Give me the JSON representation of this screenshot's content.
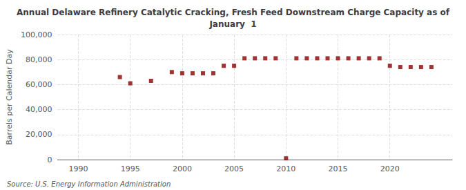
{
  "chart_data": {
    "type": "scatter",
    "title": "Annual Delaware Refinery Catalytic Cracking, Fresh Feed Downstream Charge Capacity as of\nJanuary  1",
    "ylabel": "Barrels per Calendar Day",
    "annotation": "Source: U.S. Energy Information Administration",
    "color": "#8b0000",
    "marker": "square",
    "grid": true,
    "x": [
      1994,
      1995,
      1997,
      1999,
      2000,
      2001,
      2002,
      2003,
      2004,
      2005,
      2006,
      2007,
      2008,
      2009,
      2010,
      2011,
      2012,
      2013,
      2014,
      2015,
      2016,
      2017,
      2018,
      2019,
      2020,
      2021,
      2022,
      2023,
      2024
    ],
    "values": [
      66000,
      61000,
      63000,
      70000,
      69000,
      69000,
      69000,
      69000,
      75000,
      75000,
      81000,
      81000,
      81000,
      81000,
      1000,
      81000,
      81000,
      81000,
      81000,
      81000,
      81000,
      81000,
      81000,
      81000,
      75000,
      74000,
      74000,
      74000,
      74000
    ],
    "xlim": [
      1988,
      2026
    ],
    "xticks": [
      1990,
      1995,
      2000,
      2005,
      2010,
      2015,
      2020
    ],
    "ylim": [
      0,
      100000
    ],
    "yticks": [
      0,
      {
        "value": 20000,
        "label": "20,000"
      },
      {
        "value": 40000,
        "label": "40,000"
      },
      {
        "value": 60000,
        "label": "60,000"
      },
      {
        "value": 80000,
        "label": "80,000"
      },
      {
        "value": 100000,
        "label": "100,000"
      }
    ]
  }
}
